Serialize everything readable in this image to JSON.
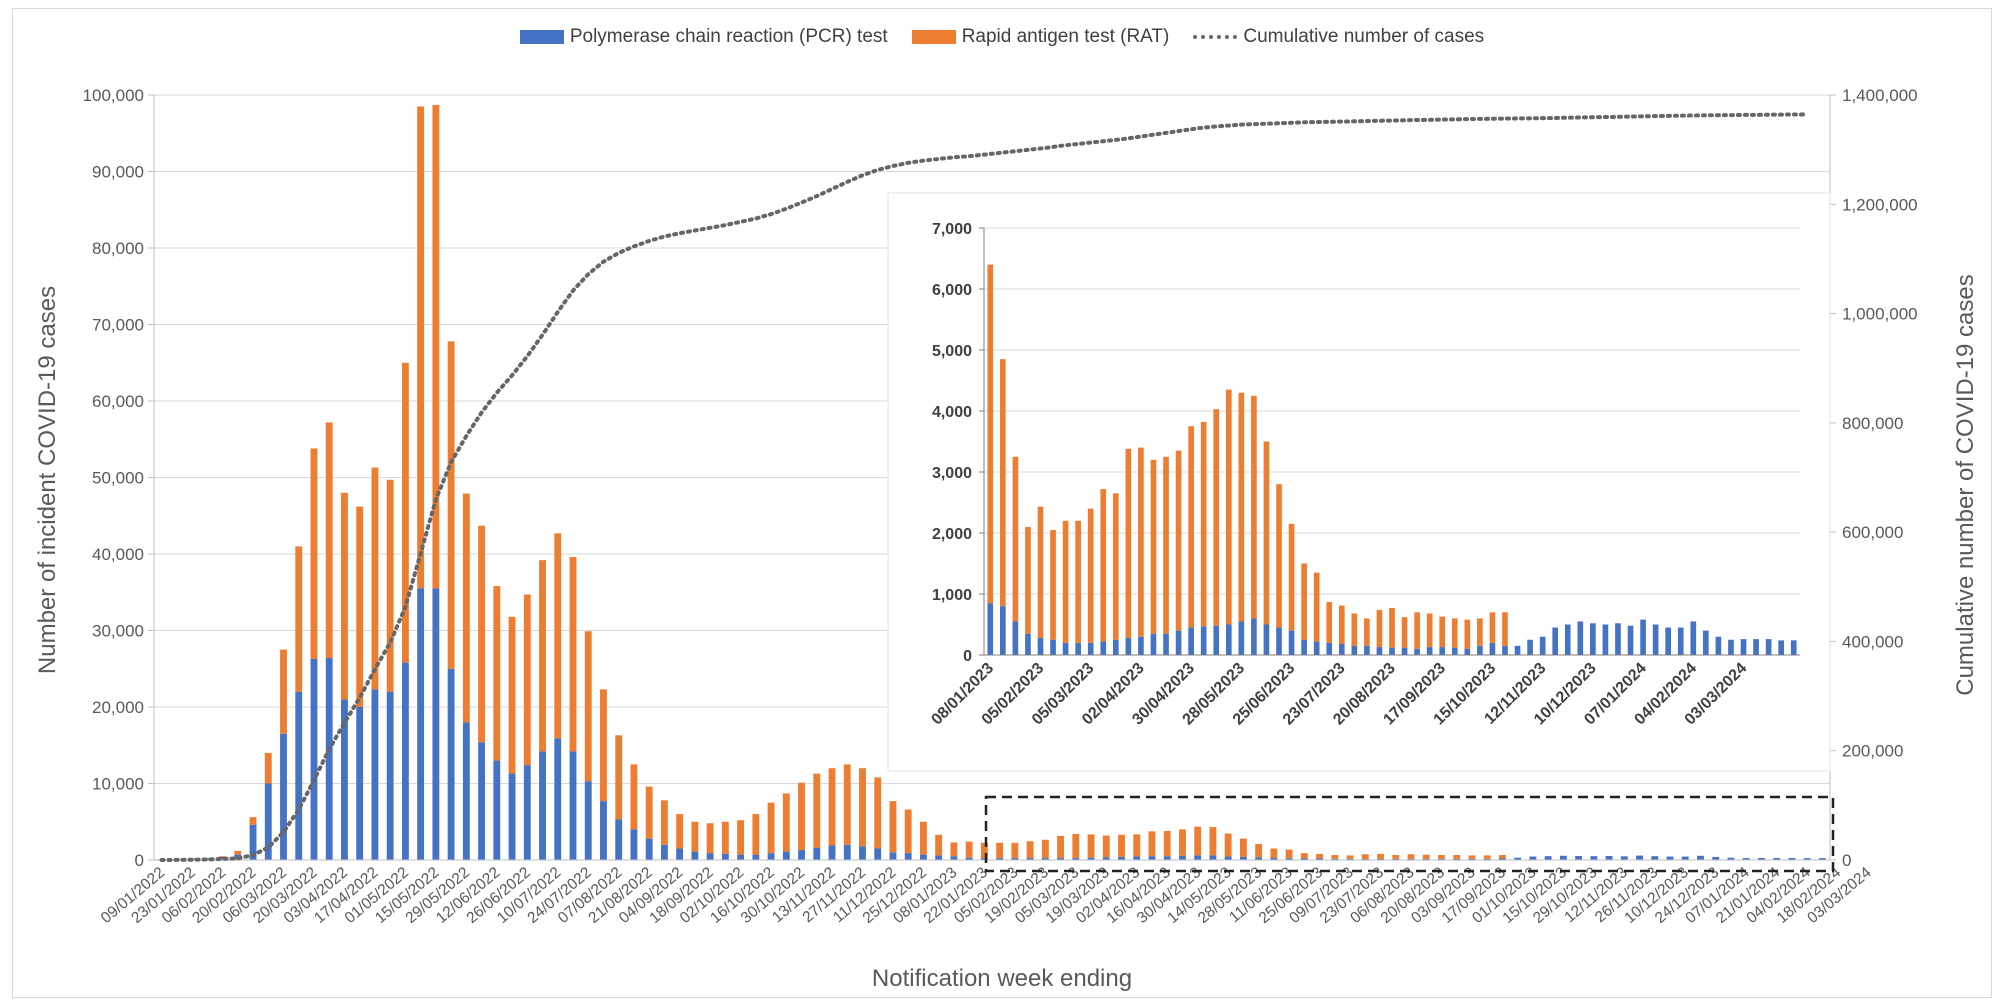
{
  "legend": {
    "pcr": "Polymerase chain reaction (PCR) test",
    "rat": "Rapid antigen test (RAT)",
    "cum": "Cumulative number of cases"
  },
  "colors": {
    "pcr": "#4472c4",
    "rat": "#ed7d31",
    "cum": "#666666",
    "grid": "#d9d9d9"
  },
  "chart_data": [
    {
      "type": "bar",
      "stacked": true,
      "xlabel": "Notification week ending",
      "ylabel": "Number of incident COVID-19 cases",
      "y2label": "Cumulative number of COVID-19 cases",
      "ylim": [
        0,
        100000
      ],
      "y2lim": [
        0,
        1400000
      ],
      "yticks": [
        "0",
        "10,000",
        "20,000",
        "30,000",
        "40,000",
        "50,000",
        "60,000",
        "70,000",
        "80,000",
        "90,000",
        "100,000"
      ],
      "y2ticks": [
        "0",
        "200,000",
        "400,000",
        "600,000",
        "800,000",
        "1,000,000",
        "1,200,000",
        "1,400,000"
      ],
      "x_tick_labels": [
        "09/01/2022",
        "23/01/2022",
        "06/02/2022",
        "20/02/2022",
        "06/03/2022",
        "20/03/2022",
        "03/04/2022",
        "17/04/2022",
        "01/05/2022",
        "15/05/2022",
        "29/05/2022",
        "12/06/2022",
        "26/06/2022",
        "10/07/2022",
        "24/07/2022",
        "07/08/2022",
        "21/08/2022",
        "04/09/2022",
        "18/09/2022",
        "02/10/2022",
        "16/10/2022",
        "30/10/2022",
        "13/11/2022",
        "27/11/2022",
        "11/12/2022",
        "25/12/2022",
        "08/01/2023",
        "22/01/2023",
        "05/02/2023",
        "19/02/2023",
        "05/03/2023",
        "19/03/2023",
        "02/04/2023",
        "16/04/2023",
        "30/04/2023",
        "14/05/2023",
        "28/05/2023",
        "11/06/2023",
        "25/06/2023",
        "09/07/2023",
        "23/07/2023",
        "06/08/2023",
        "20/08/2023",
        "03/09/2023",
        "17/09/2023",
        "01/10/2023",
        "15/10/2023",
        "29/10/2023",
        "12/11/2023",
        "26/11/2023",
        "10/12/2023",
        "24/12/2023",
        "07/01/2024",
        "21/01/2024",
        "04/02/2024",
        "18/02/2024",
        "03/03/2024"
      ],
      "x_tick_every": 2,
      "series": [
        {
          "name": "Polymerase chain reaction (PCR) test",
          "values": [
            100,
            150,
            200,
            250,
            400,
            700,
            4600,
            10000,
            16500,
            22000,
            26300,
            26400,
            21000,
            20000,
            22300,
            22000,
            25800,
            35500,
            35500,
            25000,
            18000,
            15400,
            13000,
            11300,
            12400,
            14200,
            15900,
            14200,
            10300,
            7700,
            5300,
            4000,
            2800,
            2000,
            1500,
            1100,
            900,
            800,
            700,
            700,
            900,
            1100,
            1300,
            1600,
            1900,
            2000,
            1800,
            1500,
            1000,
            900,
            700,
            600,
            500,
            300,
            250,
            250,
            250,
            250,
            250,
            250,
            250,
            300,
            350,
            400,
            450,
            500,
            500,
            550,
            600,
            600,
            450,
            400,
            350,
            250,
            220,
            200,
            200,
            150,
            150,
            150,
            150,
            150,
            150,
            150,
            150,
            150,
            150,
            150,
            200,
            300,
            450,
            500,
            550,
            520,
            500,
            520,
            480,
            580,
            500,
            450,
            450,
            550,
            400,
            300,
            250,
            260,
            260,
            260,
            240,
            240
          ]
        },
        {
          "name": "Rapid antigen test (RAT)",
          "values": [
            0,
            0,
            0,
            0,
            100,
            500,
            1000,
            4000,
            11000,
            19000,
            27500,
            30800,
            27000,
            26200,
            29000,
            27700,
            39200,
            63000,
            63200,
            42800,
            29900,
            28300,
            22800,
            20500,
            22300,
            25000,
            26800,
            25400,
            19600,
            14600,
            11000,
            8500,
            6800,
            5800,
            4500,
            3900,
            3900,
            4200,
            4500,
            5300,
            6600,
            7600,
            8800,
            9700,
            10100,
            10500,
            10200,
            9300,
            6700,
            5700,
            4300,
            2700,
            1800,
            2100,
            2000,
            2000,
            2000,
            2200,
            2400,
            2900,
            3150,
            3050,
            2850,
            2900,
            2900,
            3250,
            3300,
            3450,
            3750,
            3700,
            3000,
            2400,
            1750,
            1250,
            1150,
            700,
            600,
            500,
            450,
            600,
            650,
            500,
            600,
            550,
            500,
            500,
            450,
            450,
            450,
            0,
            0,
            0,
            0,
            0,
            0,
            0,
            0,
            0,
            0,
            0,
            0,
            0,
            0,
            0,
            0,
            0,
            0,
            0,
            0,
            0
          ]
        },
        {
          "name": "Cumulative number of cases",
          "axis": "right",
          "values": [
            0,
            200,
            500,
            1000,
            2000,
            3000,
            9000,
            23000,
            51000,
            92000,
            146000,
            203000,
            251000,
            297000,
            349000,
            398000,
            463000,
            561000,
            660000,
            728000,
            776000,
            819000,
            855000,
            887000,
            922000,
            961000,
            1003000,
            1042000,
            1072000,
            1095000,
            1111000,
            1123000,
            1133000,
            1141000,
            1147000,
            1152000,
            1157000,
            1162000,
            1168000,
            1174000,
            1182000,
            1192000,
            1203000,
            1215000,
            1228000,
            1241000,
            1253000,
            1263000,
            1270000,
            1276000,
            1280000,
            1283000,
            1286000,
            1288000,
            1291000,
            1294000,
            1297000,
            1300000,
            1303000,
            1307000,
            1310000,
            1313000,
            1316000,
            1319000,
            1323000,
            1327000,
            1331000,
            1335000,
            1339000,
            1342000,
            1344000,
            1346000,
            1347000,
            1348000,
            1349000,
            1350000,
            1350600,
            1351200,
            1351700,
            1352300,
            1352900,
            1353400,
            1354000,
            1354500,
            1355000,
            1355500,
            1356000,
            1356400,
            1356900,
            1357100,
            1357400,
            1357800,
            1358300,
            1358800,
            1359300,
            1359800,
            1360300,
            1360900,
            1361400,
            1361800,
            1362300,
            1362700,
            1363000,
            1363300,
            1363600,
            1363800,
            1364100,
            1364300,
            1364500
          ]
        }
      ],
      "highlight_box": true
    },
    {
      "type": "bar",
      "stacked": true,
      "inset": true,
      "ylim": [
        0,
        7000
      ],
      "yticks": [
        "0",
        "1,000",
        "2,000",
        "3,000",
        "4,000",
        "5,000",
        "6,000",
        "7,000"
      ],
      "x_tick_labels": [
        "08/01/2023",
        "05/02/2023",
        "05/03/2023",
        "02/04/2023",
        "30/04/2023",
        "28/05/2023",
        "25/06/2023",
        "23/07/2023",
        "20/08/2023",
        "17/09/2023",
        "15/10/2023",
        "12/11/2023",
        "10/12/2023",
        "07/01/2024",
        "04/02/2024",
        "03/03/2024"
      ],
      "x_tick_every": 4,
      "series": [
        {
          "name": "Polymerase chain reaction (PCR) test",
          "values": [
            850,
            800,
            550,
            350,
            280,
            250,
            200,
            200,
            200,
            220,
            250,
            280,
            300,
            350,
            350,
            400,
            450,
            470,
            480,
            500,
            550,
            600,
            500,
            450,
            400,
            250,
            220,
            200,
            180,
            150,
            150,
            130,
            120,
            120,
            100,
            130,
            130,
            120,
            100,
            150,
            200,
            150,
            150,
            250,
            300,
            450,
            500,
            550,
            520,
            500,
            520,
            480,
            580,
            500,
            450,
            450,
            550,
            400,
            300,
            250,
            260,
            260,
            260,
            240,
            240
          ]
        },
        {
          "name": "Rapid antigen test (RAT)",
          "values": [
            5550,
            4050,
            2700,
            1750,
            2150,
            1800,
            2000,
            2000,
            2200,
            2500,
            2400,
            3100,
            3100,
            2850,
            2900,
            2950,
            3300,
            3350,
            3550,
            3850,
            3750,
            3650,
            3000,
            2350,
            1750,
            1250,
            1130,
            670,
            630,
            530,
            450,
            610,
            650,
            500,
            600,
            550,
            500,
            480,
            480,
            450,
            500,
            550,
            0,
            0,
            0,
            0,
            0,
            0,
            0,
            0,
            0,
            0,
            0,
            0,
            0,
            0,
            0,
            0,
            0,
            0,
            0,
            0,
            0,
            0,
            0
          ]
        }
      ]
    }
  ],
  "axes_text": {
    "xlabel": "Notification week ending",
    "ylabel": "Number of incident COVID-19 cases",
    "y2label": "Cumulative number of COVID-19 cases"
  }
}
